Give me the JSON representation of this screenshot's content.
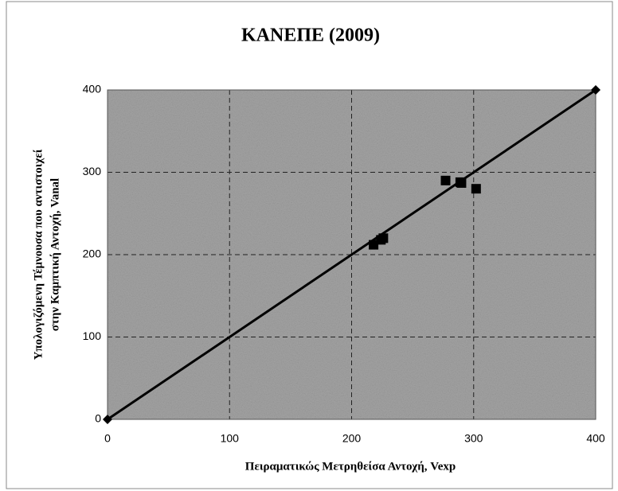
{
  "chart_data": {
    "type": "scatter",
    "title": "ΚΑΝΕΠΕ (2009)",
    "x_label": "Πειραματικώς Μετρηθείσα Αντοχή, Vexp",
    "y_label": [
      "Υπολογιζόμενη Τέμνουσα που αντιστοιχεί",
      "στην Καμπτική Αντοχή, Vanal"
    ],
    "xlim": [
      0,
      400
    ],
    "xticks": [
      0,
      100,
      200,
      300,
      400
    ],
    "ylim": [
      0,
      400
    ],
    "yticks": [
      0,
      100,
      200,
      300,
      400
    ],
    "grid": true,
    "series": [
      {
        "type": "line",
        "marker": "diamond",
        "color": "#000000",
        "x": [
          0,
          400
        ],
        "values": [
          0,
          400
        ]
      },
      {
        "type": "scatter",
        "marker": "square",
        "color": "#000000",
        "x": [
          218,
          224,
          226,
          277,
          289,
          290,
          302
        ],
        "values": [
          212,
          218,
          220,
          290,
          288,
          287,
          280
        ]
      }
    ]
  }
}
